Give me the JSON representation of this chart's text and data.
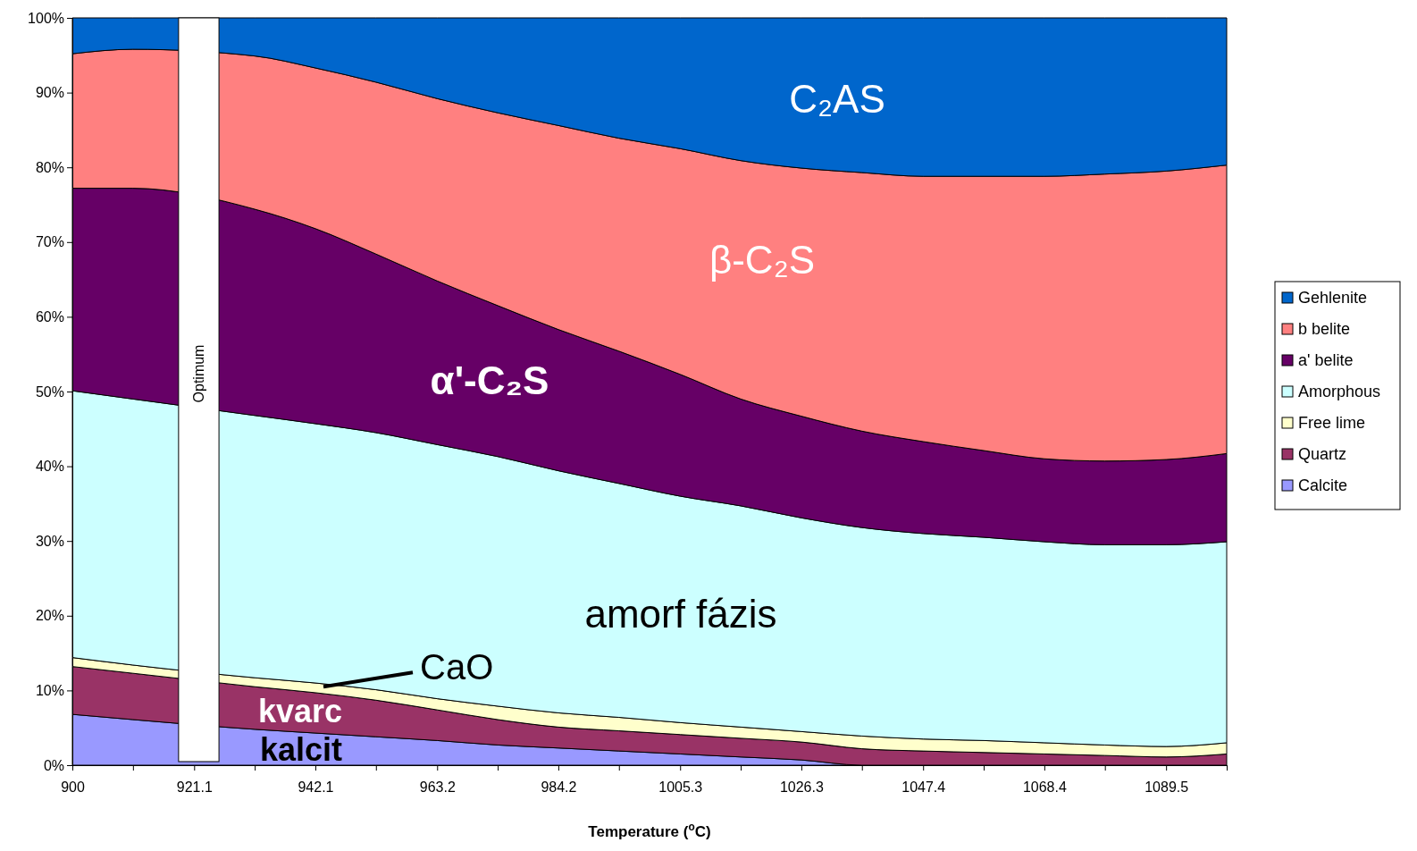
{
  "chart_data": {
    "type": "area",
    "stacked": true,
    "xlabel": "Temperature ($^{o}$C)",
    "x": [
      900,
      910.5,
      931.6,
      942.1,
      952.6,
      963.2,
      973.7,
      984.2,
      994.7,
      1005.3,
      1015.8,
      1026.3,
      1036.8,
      1047.4,
      1057.9,
      1068.4,
      1078.9,
      1089.5,
      1100
    ],
    "xlim": [
      900,
      1100
    ],
    "xticks": [
      900,
      {
        "value": 910.5,
        "label": null
      },
      921.1,
      {
        "value": 931.6,
        "label": null
      },
      942.1,
      {
        "value": 952.6,
        "label": null
      },
      963.2,
      {
        "value": 973.7,
        "label": null
      },
      984.2,
      {
        "value": 994.7,
        "label": null
      },
      1005.3,
      {
        "value": 1015.8,
        "label": null
      },
      1026.3,
      {
        "value": 1036.8,
        "label": null
      },
      1047.4,
      {
        "value": 1057.9,
        "label": null
      },
      1068.4,
      {
        "value": 1078.9,
        "label": null
      },
      1089.5,
      {
        "value": 1100,
        "label": null
      }
    ],
    "ylim": [
      0,
      100
    ],
    "yticks": [
      {
        "value": 0,
        "label": "0%"
      },
      {
        "value": 10,
        "label": "10%"
      },
      {
        "value": 20,
        "label": "20%"
      },
      {
        "value": 30,
        "label": "30%"
      },
      {
        "value": 40,
        "label": "40%"
      },
      {
        "value": 50,
        "label": "50%"
      },
      {
        "value": 60,
        "label": "60%"
      },
      {
        "value": 70,
        "label": "70%"
      },
      {
        "value": 80,
        "label": "80%"
      },
      {
        "value": 90,
        "label": "90%"
      },
      {
        "value": 100,
        "label": "100%"
      }
    ],
    "series": [
      {
        "name": "Calcite",
        "color": "#9999ff",
        "values": [
          6.8,
          6.1,
          4.8,
          4.3,
          3.8,
          3.3,
          2.7,
          2.3,
          1.9,
          1.5,
          1.1,
          0.7,
          0,
          0,
          0,
          0,
          0,
          0,
          0
        ]
      },
      {
        "name": "Quartz",
        "color": "#993366",
        "values": [
          6.4,
          6.2,
          5.7,
          5.4,
          4.9,
          4.1,
          3.4,
          2.8,
          2.7,
          2.6,
          2.5,
          2.4,
          2.2,
          1.9,
          1.7,
          1.5,
          1.3,
          1.1,
          1.5
        ]
      },
      {
        "name": "Free lime",
        "color": "#ffffcc",
        "values": [
          1.2,
          1.1,
          1.2,
          1.3,
          1.4,
          1.5,
          1.8,
          1.9,
          1.8,
          1.6,
          1.5,
          1.4,
          1.7,
          1.6,
          1.6,
          1.5,
          1.4,
          1.4,
          1.5
        ]
      },
      {
        "name": "Amorphous",
        "color": "#ccffff",
        "values": [
          35.7,
          35.6,
          35.1,
          34.7,
          34.4,
          34.0,
          33.4,
          32.4,
          31.3,
          30.3,
          29.6,
          28.6,
          27.9,
          27.5,
          27.2,
          26.9,
          26.8,
          27.0,
          26.9
        ]
      },
      {
        "name": "a' belite",
        "color": "#660066",
        "values": [
          27.1,
          28.2,
          27.6,
          26.1,
          23.9,
          21.9,
          20.2,
          18.9,
          17.7,
          16.3,
          14.3,
          13.6,
          12.9,
          12.3,
          11.6,
          11.1,
          11.2,
          11.4,
          11.8
        ]
      },
      {
        "name": "b belite",
        "color": "#ff8080",
        "values": [
          18.0,
          18.6,
          20.5,
          21.5,
          23.0,
          24.4,
          25.8,
          27.3,
          28.5,
          30.2,
          31.9,
          33.2,
          34.6,
          35.5,
          36.7,
          37.8,
          38.4,
          38.6,
          38.6
        ]
      },
      {
        "name": "Gehlenite",
        "color": "#0066cc",
        "values": [
          4.8,
          4.2,
          5.1,
          6.7,
          8.6,
          10.8,
          12.7,
          14.4,
          16.1,
          17.5,
          19.1,
          20.1,
          20.7,
          21.2,
          21.2,
          21.2,
          20.9,
          20.5,
          19.7
        ]
      }
    ],
    "bands": [
      {
        "axis": "x",
        "from": 918.4,
        "to": 925.4,
        "label": "Optimum",
        "color": "#ffffff"
      }
    ],
    "annotations": [
      "C₂AS",
      "β-C₂S",
      "α'-C₂S",
      "amorf fázis",
      {
        "text": "CaO",
        "x": 943.5,
        "y": 10.5
      },
      "kvarc",
      "kalcit"
    ],
    "legend": "right"
  }
}
